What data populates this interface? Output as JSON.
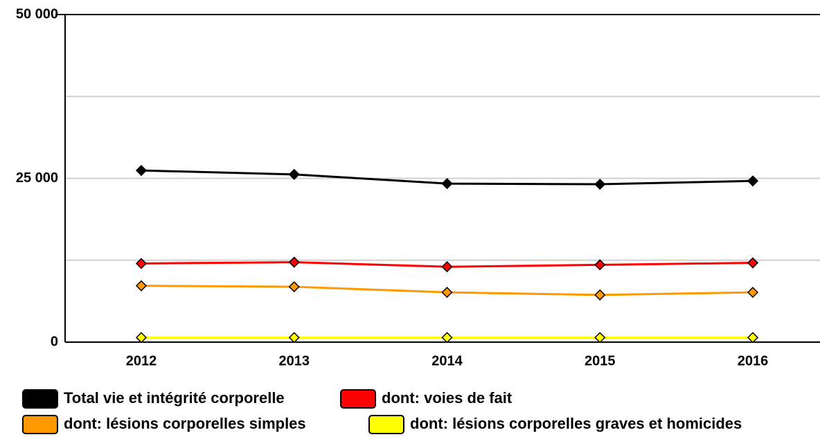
{
  "chart_data": {
    "type": "line",
    "categories": [
      "2012",
      "2013",
      "2014",
      "2015",
      "2016"
    ],
    "series": [
      {
        "name": "Total vie et intégrité corporelle",
        "color": "#000000",
        "values": [
          26200,
          25600,
          24200,
          24100,
          24600
        ]
      },
      {
        "name": "dont: voies de fait",
        "color": "#ff0000",
        "values": [
          12000,
          12200,
          11500,
          11800,
          12100
        ]
      },
      {
        "name": "dont: lésions corporelles simples",
        "color": "#ff9900",
        "values": [
          8600,
          8450,
          7600,
          7200,
          7600
        ]
      },
      {
        "name": "dont: lésions corporelles graves et homicides",
        "color": "#ffff00",
        "values": [
          700,
          700,
          700,
          700,
          700
        ]
      }
    ],
    "ylim": [
      0,
      50000
    ],
    "yticks": [
      {
        "value": 0,
        "label": "0"
      },
      {
        "value": 25000,
        "label": "25 000"
      },
      {
        "value": 50000,
        "label": "50 000"
      }
    ],
    "minor_gridlines": [
      12500,
      37500
    ],
    "grid": true,
    "legend": "bottom"
  }
}
